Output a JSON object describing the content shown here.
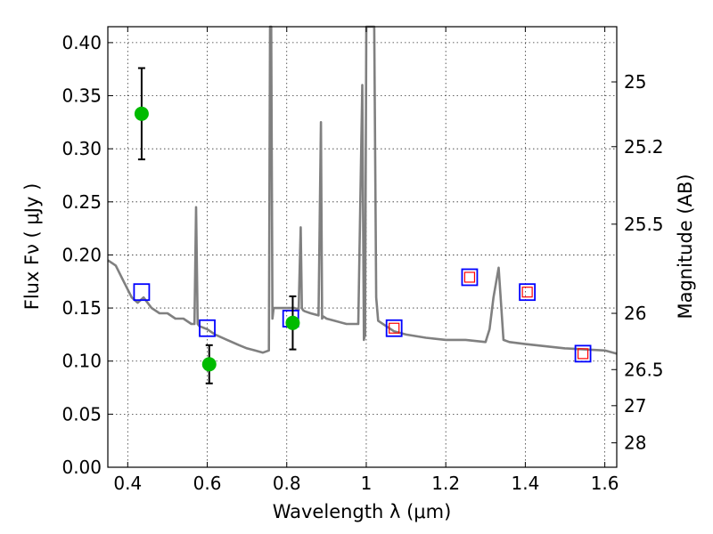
{
  "chart_data": {
    "type": "line",
    "xlabel": "Wavelength  λ (μm)",
    "ylabel": "Flux  Fν  ( μJy )",
    "ylabel_right": "Magnitude (AB)",
    "xlim": [
      0.35,
      1.63
    ],
    "ylim": [
      0.0,
      0.415
    ],
    "grid": true,
    "x_ticks": [
      0.4,
      0.6,
      0.8,
      1.0,
      1.2,
      1.4,
      1.6
    ],
    "x_tick_labels": [
      "0.4",
      "0.6",
      "0.8",
      "1",
      "1.2",
      "1.4",
      "1.6"
    ],
    "y_ticks": [
      0.0,
      0.05,
      0.1,
      0.15,
      0.2,
      0.25,
      0.3,
      0.35,
      0.4
    ],
    "y_tick_labels": [
      "0.00",
      "0.05",
      "0.10",
      "0.15",
      "0.20",
      "0.25",
      "0.30",
      "0.35",
      "0.40"
    ],
    "right_ticks": [
      {
        "label": "25",
        "flux": 0.363
      },
      {
        "label": "25.2",
        "flux": 0.302
      },
      {
        "label": "25.5",
        "flux": 0.229
      },
      {
        "label": "26",
        "flux": 0.145
      },
      {
        "label": "26.5",
        "flux": 0.092
      },
      {
        "label": "27",
        "flux": 0.058
      },
      {
        "label": "28",
        "flux": 0.023
      }
    ],
    "colors": {
      "model": "#808080",
      "observed": "#00bb00",
      "model_box": "#0000ff",
      "model_box_inner": "#ff0000",
      "errorbar": "#000000"
    },
    "series": [
      {
        "kind": "model_spectrum",
        "x": [
          0.35,
          0.37,
          0.39,
          0.41,
          0.425,
          0.44,
          0.46,
          0.48,
          0.5,
          0.52,
          0.54,
          0.56,
          0.568,
          0.572,
          0.576,
          0.58,
          0.6,
          0.62,
          0.65,
          0.68,
          0.7,
          0.72,
          0.74,
          0.755,
          0.758,
          0.761,
          0.764,
          0.767,
          0.78,
          0.8,
          0.81,
          0.82,
          0.83,
          0.835,
          0.838,
          0.841,
          0.845,
          0.86,
          0.88,
          0.886,
          0.889,
          0.892,
          0.9,
          0.92,
          0.95,
          0.98,
          0.99,
          0.994,
          0.997,
          1.0,
          1.003,
          1.006,
          1.01,
          1.015,
          1.02,
          1.025,
          1.03,
          1.05,
          1.07,
          1.1,
          1.15,
          1.2,
          1.25,
          1.3,
          1.31,
          1.32,
          1.333,
          1.345,
          1.36,
          1.4,
          1.5,
          1.6,
          1.63
        ],
        "y": [
          0.195,
          0.19,
          0.175,
          0.16,
          0.155,
          0.16,
          0.15,
          0.145,
          0.145,
          0.14,
          0.14,
          0.135,
          0.135,
          0.245,
          0.135,
          0.133,
          0.13,
          0.125,
          0.12,
          0.115,
          0.112,
          0.11,
          0.108,
          0.11,
          0.42,
          0.42,
          0.14,
          0.15,
          0.15,
          0.15,
          0.15,
          0.15,
          0.148,
          0.226,
          0.15,
          0.148,
          0.147,
          0.145,
          0.143,
          0.325,
          0.14,
          0.142,
          0.14,
          0.138,
          0.135,
          0.135,
          0.36,
          0.12,
          0.125,
          0.42,
          0.42,
          0.42,
          0.42,
          0.42,
          0.42,
          0.16,
          0.138,
          0.133,
          0.128,
          0.125,
          0.122,
          0.12,
          0.12,
          0.118,
          0.13,
          0.16,
          0.188,
          0.12,
          0.118,
          0.116,
          0.112,
          0.11,
          0.107
        ]
      },
      {
        "kind": "observed_photometry",
        "x": [
          0.435,
          0.605,
          0.815
        ],
        "y": [
          0.333,
          0.097,
          0.136
        ],
        "yerr": [
          0.043,
          0.018,
          0.025
        ]
      },
      {
        "kind": "model_photometry",
        "x": [
          0.435,
          0.6,
          0.81,
          1.07,
          1.26,
          1.405,
          1.545
        ],
        "y": [
          0.165,
          0.131,
          0.14,
          0.131,
          0.179,
          0.165,
          0.107
        ],
        "inner_red": [
          false,
          false,
          false,
          true,
          true,
          true,
          true
        ]
      }
    ]
  }
}
